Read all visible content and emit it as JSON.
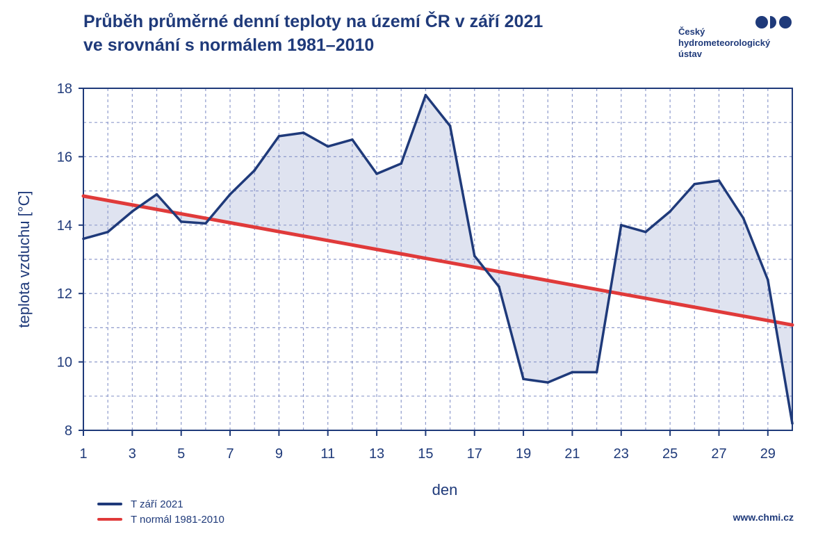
{
  "title_line1": "Průběh průměrné denní teploty na území ČR v září 2021",
  "title_line2": "ve srovnání s normálem 1981–2010",
  "logo": {
    "line1": "Český",
    "line2": "hydrometeorologický",
    "line3": "ústav"
  },
  "footer_url": "www.chmi.cz",
  "colors": {
    "actual": "#1f3a7a",
    "normal": "#e03a3a",
    "fill": "#dfe3f0",
    "grid": "#8f9bcc",
    "text": "#1f3a7a"
  },
  "chart_data": {
    "type": "line",
    "xlabel": "den",
    "ylabel": "teplota vzduchu [°C]",
    "x": [
      1,
      2,
      3,
      4,
      5,
      6,
      7,
      8,
      9,
      10,
      11,
      12,
      13,
      14,
      15,
      16,
      17,
      18,
      19,
      20,
      21,
      22,
      23,
      24,
      25,
      26,
      27,
      28,
      29,
      30
    ],
    "xlim": [
      1,
      30
    ],
    "ylim": [
      8,
      18
    ],
    "x_ticks": [
      "1",
      "3",
      "5",
      "7",
      "9",
      "11",
      "13",
      "15",
      "17",
      "19",
      "21",
      "23",
      "25",
      "27",
      "29"
    ],
    "y_ticks": [
      "8",
      "10",
      "12",
      "14",
      "16",
      "18"
    ],
    "grid": true,
    "fill_between": true,
    "series": [
      {
        "name": "T září 2021",
        "values": [
          13.6,
          13.8,
          14.4,
          14.9,
          14.1,
          14.05,
          14.9,
          15.6,
          16.6,
          16.7,
          16.3,
          16.5,
          15.5,
          15.8,
          17.8,
          16.9,
          13.1,
          12.2,
          9.5,
          9.4,
          9.7,
          9.7,
          14.0,
          13.8,
          14.4,
          15.2,
          15.3,
          14.2,
          12.4,
          8.2
        ]
      },
      {
        "name": "T normál 1981-2010",
        "values": [
          14.85,
          14.72,
          14.59,
          14.46,
          14.33,
          14.2,
          14.07,
          13.94,
          13.81,
          13.68,
          13.55,
          13.42,
          13.29,
          13.16,
          13.03,
          12.9,
          12.77,
          12.64,
          12.51,
          12.38,
          12.25,
          12.12,
          11.99,
          11.86,
          11.73,
          11.6,
          11.47,
          11.34,
          11.21,
          11.08
        ]
      }
    ]
  }
}
